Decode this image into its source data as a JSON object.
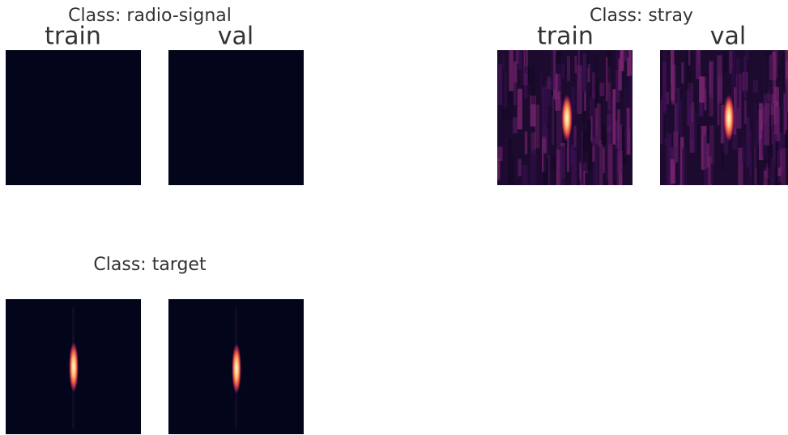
{
  "groups": [
    {
      "title": "Class: radio-signal",
      "labels": [
        "train",
        "val"
      ]
    },
    {
      "title": "Class: stray",
      "labels": [
        "train",
        "val"
      ]
    },
    {
      "title": "Class: target"
    }
  ]
}
